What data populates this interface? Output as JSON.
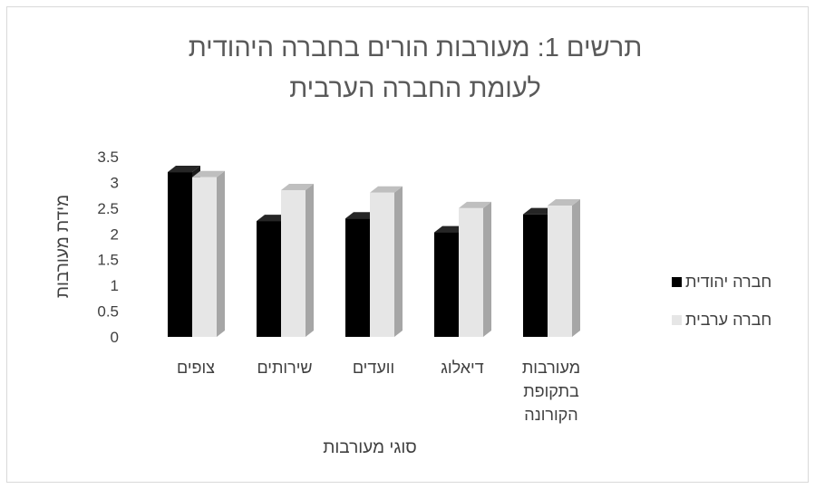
{
  "chart_data": {
    "type": "bar",
    "title_lines": [
      "תרשים 1: מעורבות הורים בחברה היהודית",
      "לעומת החברה הערבית"
    ],
    "xlabel": "סוגי מעורבות",
    "ylabel": "מידת מעורבות",
    "ylim": [
      0,
      3.5
    ],
    "yticks": [
      "3.5",
      "3",
      "2.5",
      "2",
      "1.5",
      "1",
      "0.5",
      "0"
    ],
    "categories": [
      [
        "צופים"
      ],
      [
        "שירותים"
      ],
      [
        "וועדים"
      ],
      [
        "דיאלוג"
      ],
      [
        "מעורבות",
        "בתקופת",
        "הקורונה"
      ]
    ],
    "series": [
      {
        "name": "חברה יהודית",
        "values": [
          3.2,
          2.25,
          2.3,
          2.03,
          2.38
        ]
      },
      {
        "name": "חברה ערבית",
        "values": [
          3.1,
          2.85,
          2.8,
          2.5,
          2.55
        ]
      }
    ],
    "legend_position": "right",
    "grid": false,
    "colors": {
      "series": [
        "#000000",
        "#e6e6e6"
      ],
      "side": [
        "#1a1a1a",
        "#a6a6a6"
      ],
      "top": [
        "#262626",
        "#bfbfbf"
      ],
      "text": "#404040",
      "title": "#595959"
    }
  }
}
